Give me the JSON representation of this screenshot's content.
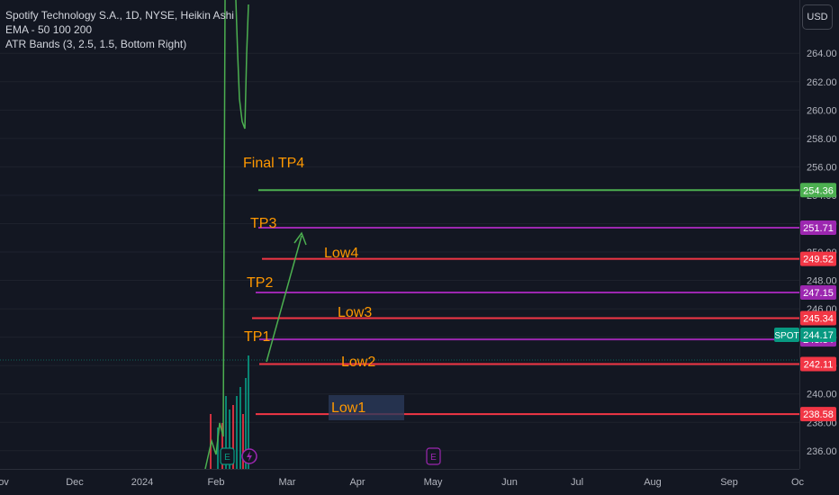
{
  "legend": {
    "title": "Spotify Technology S.A., 1D, NYSE, Heikin Ashi",
    "ema": "EMA - 50 100 200",
    "atr": "ATR Bands (3, 2.5, 1.5, Bottom Right)"
  },
  "currency_button": "USD",
  "chart_data": {
    "type": "line",
    "ylim": [
      235.2,
      267.6
    ],
    "y_ticks": [
      "236.00",
      "238.00",
      "240.00",
      "242.00",
      "244.00",
      "246.00",
      "248.00",
      "250.00",
      "252.00",
      "254.00",
      "256.00",
      "258.00",
      "260.00",
      "262.00",
      "264.00"
    ],
    "x_ticks": [
      "ov",
      "Dec",
      "2024",
      "Feb",
      "Mar",
      "Apr",
      "May",
      "Jun",
      "Jul",
      "Aug",
      "Sep",
      "Oc"
    ],
    "levels": [
      {
        "label": "Final TP4",
        "price": "254.36",
        "value": 254.36,
        "color": "#4caf50"
      },
      {
        "label": "TP3",
        "price": "251.71",
        "value": 251.71,
        "color": "#9c27b0"
      },
      {
        "label": "Low4",
        "price": "249.52",
        "value": 249.52,
        "color": "#f23645"
      },
      {
        "label": "TP2",
        "price": "247.15",
        "value": 247.15,
        "color": "#9c27b0"
      },
      {
        "label": "Low3",
        "price": "245.34",
        "value": 245.34,
        "color": "#f23645"
      },
      {
        "label": "TP1",
        "price": "243.84",
        "value": 243.84,
        "color": "#9c27b0"
      },
      {
        "label": "Low2",
        "price": "242.11",
        "value": 242.11,
        "color": "#f23645"
      },
      {
        "label": "Low1",
        "price": "238.58",
        "value": 238.58,
        "color": "#f23645"
      }
    ],
    "spot": {
      "label": "SPOT",
      "price": "244.17",
      "value": 244.17,
      "color": "#089981"
    },
    "events": [
      "E",
      "E"
    ],
    "colors": {
      "up": "#089981",
      "down": "#f23645",
      "ema": "#4caf50",
      "arrow": "#4caf50",
      "label": "#ff9800",
      "price_level": "#9c27b0"
    }
  }
}
